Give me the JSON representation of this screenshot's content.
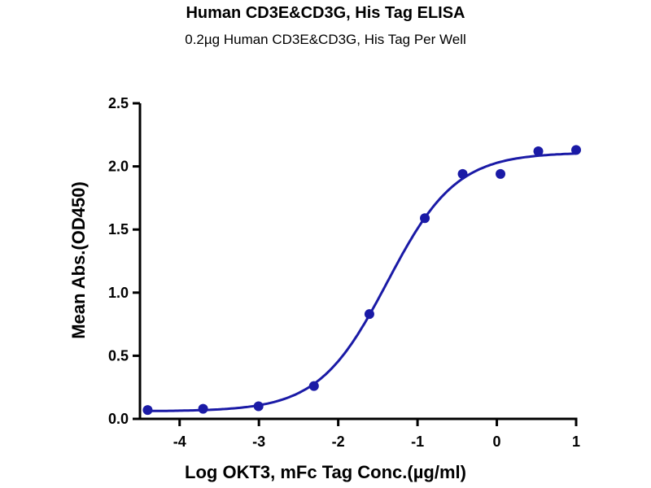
{
  "chart_data": {
    "type": "scatter",
    "title": "Human CD3E&CD3G, His Tag ELISA",
    "subtitle": "0.2µg Human CD3E&CD3G, His Tag Per Well",
    "xlabel": "Log OKT3, mFc Tag Conc.(µg/ml)",
    "ylabel": "Mean Abs.(OD450)",
    "xlim": [
      -4.5,
      1
    ],
    "ylim": [
      0,
      2.5
    ],
    "xticks": [
      -4,
      -3,
      -2,
      -1,
      0,
      1
    ],
    "xtick_labels": [
      "-4",
      "-3",
      "-2",
      "-1",
      "0",
      "1"
    ],
    "yticks": [
      0,
      0.5,
      1,
      1.5,
      2,
      2.5
    ],
    "ytick_labels": [
      "0.0",
      "0.5",
      "1.0",
      "1.5",
      "2.0",
      "2.5"
    ],
    "grid": false,
    "color": "#1a1aa6",
    "series": [
      {
        "x": [
          -4.403,
          -3.704,
          -3.005,
          -2.306,
          -1.607,
          -0.908,
          -0.431,
          0.046,
          0.523,
          1.0
        ],
        "y": [
          0.07,
          0.08,
          0.1,
          0.26,
          0.83,
          1.59,
          1.94,
          1.94,
          2.12,
          2.13
        ]
      }
    ],
    "fit": {
      "model": "4PL",
      "bottom": 0.06,
      "top": 2.11,
      "logEC50": -1.38,
      "hill": 1.0
    }
  }
}
